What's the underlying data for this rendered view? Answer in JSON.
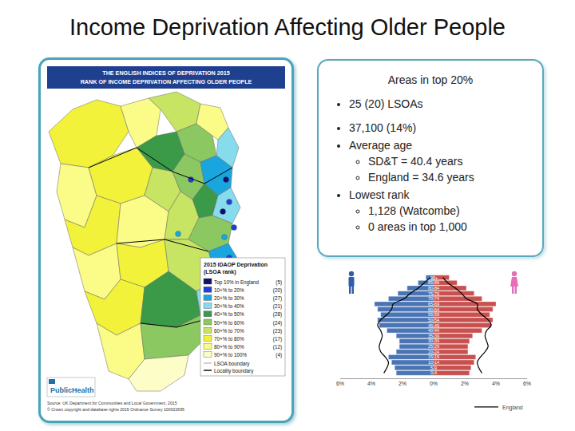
{
  "title": "Income Deprivation Affecting Older People",
  "map": {
    "header": [
      "THE ENGLISH INDICES OF DEPRIVATION 2015",
      "RANK OF INCOME DEPRIVATION AFFECTING OLDER PEOPLE"
    ],
    "legend": {
      "title": [
        "2015 IDAOP Deprivation",
        "(LSOA rank)"
      ],
      "items": [
        {
          "label": "Top 10% in England",
          "count": "(5)",
          "color": "#10106e"
        },
        {
          "label": "10+% to  20%",
          "count": "(20)",
          "color": "#1f3fd8"
        },
        {
          "label": "20+% to  30%",
          "count": "(27)",
          "color": "#19a6de"
        },
        {
          "label": "30+% to  40%",
          "count": "(21)",
          "color": "#86dcec"
        },
        {
          "label": "40+% to  50%",
          "count": "(28)",
          "color": "#3a9a48"
        },
        {
          "label": "50+% to  60%",
          "count": "(24)",
          "color": "#8cc862"
        },
        {
          "label": "60+% to  70%",
          "count": "(23)",
          "color": "#c8e463"
        },
        {
          "label": "70+% to  80%",
          "count": "(17)",
          "color": "#f2f23a"
        },
        {
          "label": "80+% to  90%",
          "count": "(12)",
          "color": "#fbfb88"
        },
        {
          "label": "90+% to 100%",
          "count": "(4)",
          "color": "#fdfdc8"
        }
      ],
      "lsoa_boundary": "LSOA boundary",
      "locality_boundary": "Locality boundary"
    },
    "logo": "PublicHealth",
    "source": [
      "Source: UK Department for Communities and Local Government, 2015",
      "© Crown copyright and database rights 2015 Ordnance Survey 100022695"
    ]
  },
  "summary": {
    "heading": "Areas in top 20%",
    "bullets": [
      {
        "text": "25 (20) LSOAs"
      },
      {
        "text": "37,100 (14%)"
      },
      {
        "text": "Average age",
        "sub": [
          "SD&T = 40.4 years",
          "England = 34.6 years"
        ]
      },
      {
        "text": "Lowest rank",
        "sub": [
          "1,128 (Watcombe)",
          "0 areas in top 1,000"
        ]
      }
    ]
  },
  "chart_data": {
    "type": "bar",
    "orientation": "horizontal",
    "categories": [
      "0-4",
      "5-9",
      "10-14",
      "15-19",
      "20-24",
      "25-29",
      "30-34",
      "35-39",
      "40-44",
      "45-49",
      "50-54",
      "55-59",
      "60-64",
      "65-69",
      "70-74",
      "75-79",
      "80-84",
      "85-89",
      "90+"
    ],
    "series": [
      {
        "type": "bar",
        "axis": "x",
        "color": "#4a74b4",
        "values": [
          2.4,
          2.5,
          2.7,
          2.9,
          2.4,
          2.2,
          2.2,
          2.4,
          3.0,
          3.5,
          3.6,
          3.4,
          3.6,
          3.8,
          2.9,
          2.3,
          1.7,
          1.0,
          0.5
        ]
      },
      {
        "type": "bar",
        "axis": "x2",
        "color": "#c8504e",
        "values": [
          2.3,
          2.4,
          2.6,
          2.7,
          2.2,
          2.2,
          2.3,
          2.5,
          3.1,
          3.7,
          3.8,
          3.6,
          3.8,
          4.0,
          3.1,
          2.6,
          2.1,
          1.5,
          1.0
        ]
      },
      {
        "type": "line",
        "axis": "x",
        "name": "England",
        "color": "#000000",
        "line_style": "solid",
        "values": [
          3.2,
          3.0,
          2.9,
          3.1,
          3.4,
          3.5,
          3.4,
          3.3,
          3.4,
          3.6,
          3.4,
          3.0,
          2.7,
          2.6,
          1.9,
          1.5,
          1.0,
          0.6,
          0.2
        ]
      },
      {
        "type": "line",
        "axis": "x2",
        "name": "England",
        "color": "#000000",
        "line_style": "solid",
        "values": [
          3.1,
          2.9,
          2.8,
          3.0,
          3.3,
          3.5,
          3.4,
          3.3,
          3.4,
          3.7,
          3.5,
          3.1,
          2.8,
          2.8,
          2.1,
          1.8,
          1.4,
          0.9,
          0.6
        ]
      }
    ],
    "xlim": [
      6,
      0
    ],
    "xticks": [
      {
        "value": 6,
        "label": "6%"
      },
      {
        "value": 4,
        "label": "4%"
      },
      {
        "value": 2,
        "label": "2%"
      }
    ],
    "x2lim": [
      0,
      6
    ],
    "x2ticks": [
      {
        "value": 0,
        "label": "0%"
      },
      {
        "value": 2,
        "label": "2%"
      },
      {
        "value": 4,
        "label": "4%"
      },
      {
        "value": 6,
        "label": "6%"
      }
    ],
    "grid": false,
    "legend": "bottom right"
  }
}
